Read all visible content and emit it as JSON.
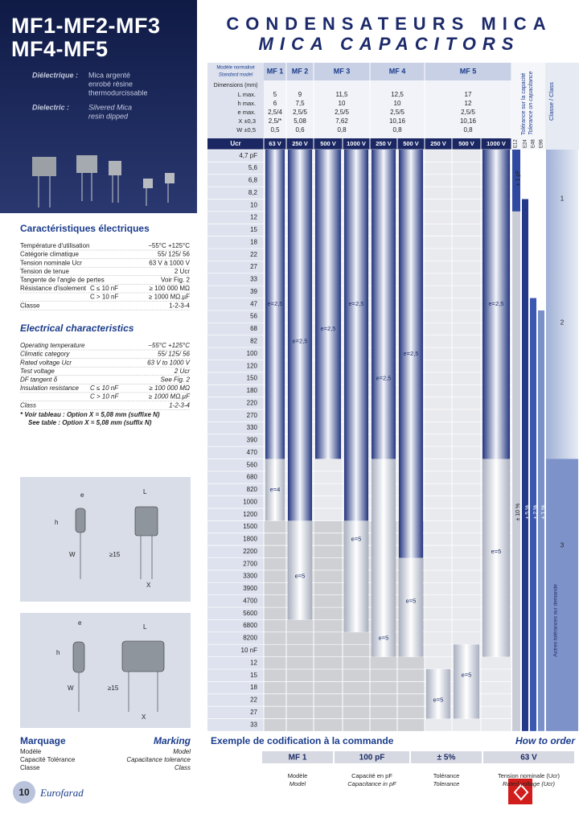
{
  "header": {
    "title_line1": "MF1-MF2-MF3",
    "title_line2": "MF4-MF5",
    "heading_fr": "CONDENSATEURS MICA",
    "heading_en": "MICA CAPACITORS"
  },
  "dielectric": {
    "label_fr": "Diélectrique :",
    "text_fr": [
      "Mica argenté",
      "enrobé résine",
      "thermodurcissable"
    ],
    "label_en": "Dielectric :",
    "text_en": [
      "Silvered Mica",
      "resin dipped"
    ]
  },
  "characteristics_fr": {
    "title": "Caractéristiques électriques",
    "rows": [
      {
        "label": "Température d'utilisation",
        "value": "−55°C +125°C"
      },
      {
        "label": "Catégorie climatique",
        "value": "55/ 125/ 56"
      },
      {
        "label": "Tension nominale Ucr",
        "value": "63 V à 1000 V"
      },
      {
        "label": "Tension de tenue",
        "value": "2 Ucr"
      },
      {
        "label": "Tangente de l'angle de pertes",
        "value": "Voir Fig. 2"
      },
      {
        "label": "Résistance d'isolement",
        "condition": "C ≤ 10 nF",
        "value": "≥ 100 000 MΩ"
      },
      {
        "condition": "C > 10 nF",
        "value": "≥ 1000 MΩ.µF"
      },
      {
        "label": "Classe",
        "value": "1-2-3-4"
      }
    ]
  },
  "characteristics_en": {
    "title": "Electrical characteristics",
    "rows": [
      {
        "label": "Operating temperature",
        "value": "−55°C +125°C"
      },
      {
        "label": "Climatic category",
        "value": "55/ 125/ 56"
      },
      {
        "label": "Rated voltage Ucr",
        "value": "63 V to 1000 V"
      },
      {
        "label": "Test voltage",
        "value": "2 Ucr"
      },
      {
        "label": "DF tangent δ",
        "value": "See Fig. 2"
      },
      {
        "label": "Insulation resistance",
        "condition": "C ≤ 10 nF",
        "value": "≥ 100 000 MΩ"
      },
      {
        "condition": "C > 10 nF",
        "value": "≥ 1000 MΩ.µF"
      },
      {
        "label": "Class",
        "value": "1-2-3-4"
      }
    ]
  },
  "notes": [
    "* Voir tableau : Option X = 5,08 mm (suffixe N)",
    "See table : Option X = 5,08 mm (suffix N)"
  ],
  "drawings": [
    [
      "e",
      "L",
      "h",
      "W",
      "≥15",
      "X"
    ],
    [
      "e",
      "L",
      "h",
      "W",
      "≥15",
      "X"
    ]
  ],
  "marking": {
    "title_fr": "Marquage",
    "title_en": "Marking",
    "lines": [
      [
        "Modèle",
        "Model"
      ],
      [
        "Capacité  Tolérance",
        "Capacitance  tolerance"
      ],
      [
        "Classe",
        "Class"
      ]
    ]
  },
  "footer": {
    "page": "10",
    "brand": "Eurofarad"
  },
  "table": {
    "model_header": [
      "Modèle normalisé",
      "Standard model"
    ],
    "models": [
      "MF 1",
      "MF 2",
      "MF 3",
      "MF 4",
      "MF 5"
    ],
    "dim_header": "Dimensions (mm)",
    "dim_rows": [
      {
        "label": "L max.",
        "values": [
          "5",
          "9",
          "11,5",
          "12,5",
          "17"
        ]
      },
      {
        "label": "h max.",
        "values": [
          "6",
          "7,5",
          "10",
          "10",
          "12"
        ]
      },
      {
        "label": "e max.",
        "values": [
          "2,5/4",
          "2,5/5",
          "2,5/5",
          "2,5/5",
          "2,5/5"
        ]
      },
      {
        "label": "X ±0,3",
        "values": [
          "2,5/*",
          "5,08",
          "7,62",
          "10,16",
          "10,16"
        ]
      },
      {
        "label": "W ±0,5",
        "values": [
          "0,5",
          "0,6",
          "0,8",
          "0,8",
          "0,8"
        ]
      }
    ],
    "voltage_header": "Ucr",
    "voltages": [
      "63 V",
      "250 V",
      "500 V",
      "1000 V",
      "250 V",
      "500 V",
      "250 V",
      "500 V",
      "1000 V"
    ],
    "capacitances": [
      "4,7 pF",
      "5,6",
      "6,8",
      "8,2",
      "10",
      "12",
      "15",
      "18",
      "22",
      "27",
      "33",
      "39",
      "47",
      "56",
      "68",
      "82",
      "100",
      "120",
      "150",
      "180",
      "220",
      "270",
      "330",
      "390",
      "470",
      "560",
      "680",
      "820",
      "1000",
      "1200",
      "1500",
      "1800",
      "2200",
      "2700",
      "3300",
      "3900",
      "4700",
      "5600",
      "6800",
      "8200",
      "10 nF",
      "12",
      "15",
      "18",
      "22",
      "27",
      "33"
    ],
    "bar_labels": [
      "e=2,5",
      "e=4",
      "e=2,5",
      "e=5",
      "e=2,5",
      "e=2,5",
      "e=5",
      "e=2,5",
      "e=5",
      "e=2,5",
      "e=5",
      "e=5",
      "e=5",
      "e=2,5",
      "e=5"
    ],
    "tolerance_header": [
      "Tolérance sur la capacité",
      "Tolerance on capacitance"
    ],
    "tolerance_codes": [
      "E12",
      "E24",
      "E48",
      "E96"
    ],
    "tolerances": [
      "± 1 pF",
      "± 10 %",
      "± 5 %",
      "± 2 %",
      "± 1 %"
    ],
    "class_header": "Classe / Class",
    "classes": [
      "1",
      "2",
      "3"
    ],
    "class_note": "Autres tolérances sur demande"
  },
  "order": {
    "title_fr": "Exemple de codification à la commande",
    "title_en": "How to order",
    "example": [
      "MF 1",
      "100 pF",
      "± 5%",
      "63 V"
    ],
    "captions": [
      [
        "Modèle",
        "Model"
      ],
      [
        "Capacité en pF",
        "Capacitance in pF"
      ],
      [
        "Tolérance",
        "Tolerance"
      ],
      [
        "Tension nominale (Ucr)",
        "Rated voltage (Ucr)"
      ]
    ]
  }
}
